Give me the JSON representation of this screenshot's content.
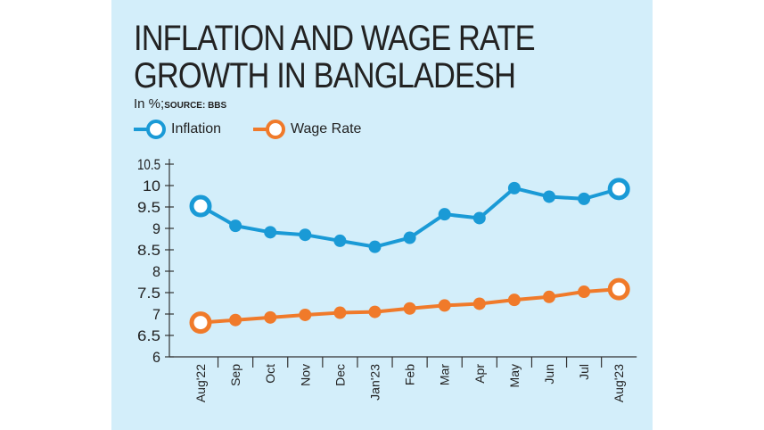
{
  "chart_data": {
    "type": "line",
    "title": "INFLATION AND WAGE RATE GROWTH IN BANGLADESH",
    "title_lines": [
      "INFLATION AND WAGE RATE",
      "GROWTH IN BANGLADESH"
    ],
    "unit": "In %;",
    "source": "SOURCE: BBS",
    "categories": [
      "Aug'22",
      "Sep",
      "Oct",
      "Nov",
      "Dec",
      "Jan'23",
      "Feb",
      "Mar",
      "Apr",
      "May",
      "Jun",
      "Jul",
      "Aug'23"
    ],
    "series": [
      {
        "name": "Inflation",
        "color": "#1a9ad6",
        "values": [
          9.52,
          9.06,
          8.91,
          8.85,
          8.71,
          8.57,
          8.78,
          9.33,
          9.24,
          9.94,
          9.74,
          9.69,
          9.92
        ]
      },
      {
        "name": "Wage Rate",
        "color": "#f07a2a",
        "values": [
          6.8,
          6.86,
          6.92,
          6.98,
          7.03,
          7.05,
          7.13,
          7.2,
          7.24,
          7.33,
          7.4,
          7.52,
          7.58
        ]
      }
    ],
    "yticks": [
      "6",
      "6.5",
      "7",
      "7.5",
      "8",
      "8.5",
      "9",
      "9.5",
      "10",
      "10.5"
    ],
    "ylim": [
      6,
      10.5
    ],
    "grid": false,
    "legend_placement": "top-left"
  }
}
